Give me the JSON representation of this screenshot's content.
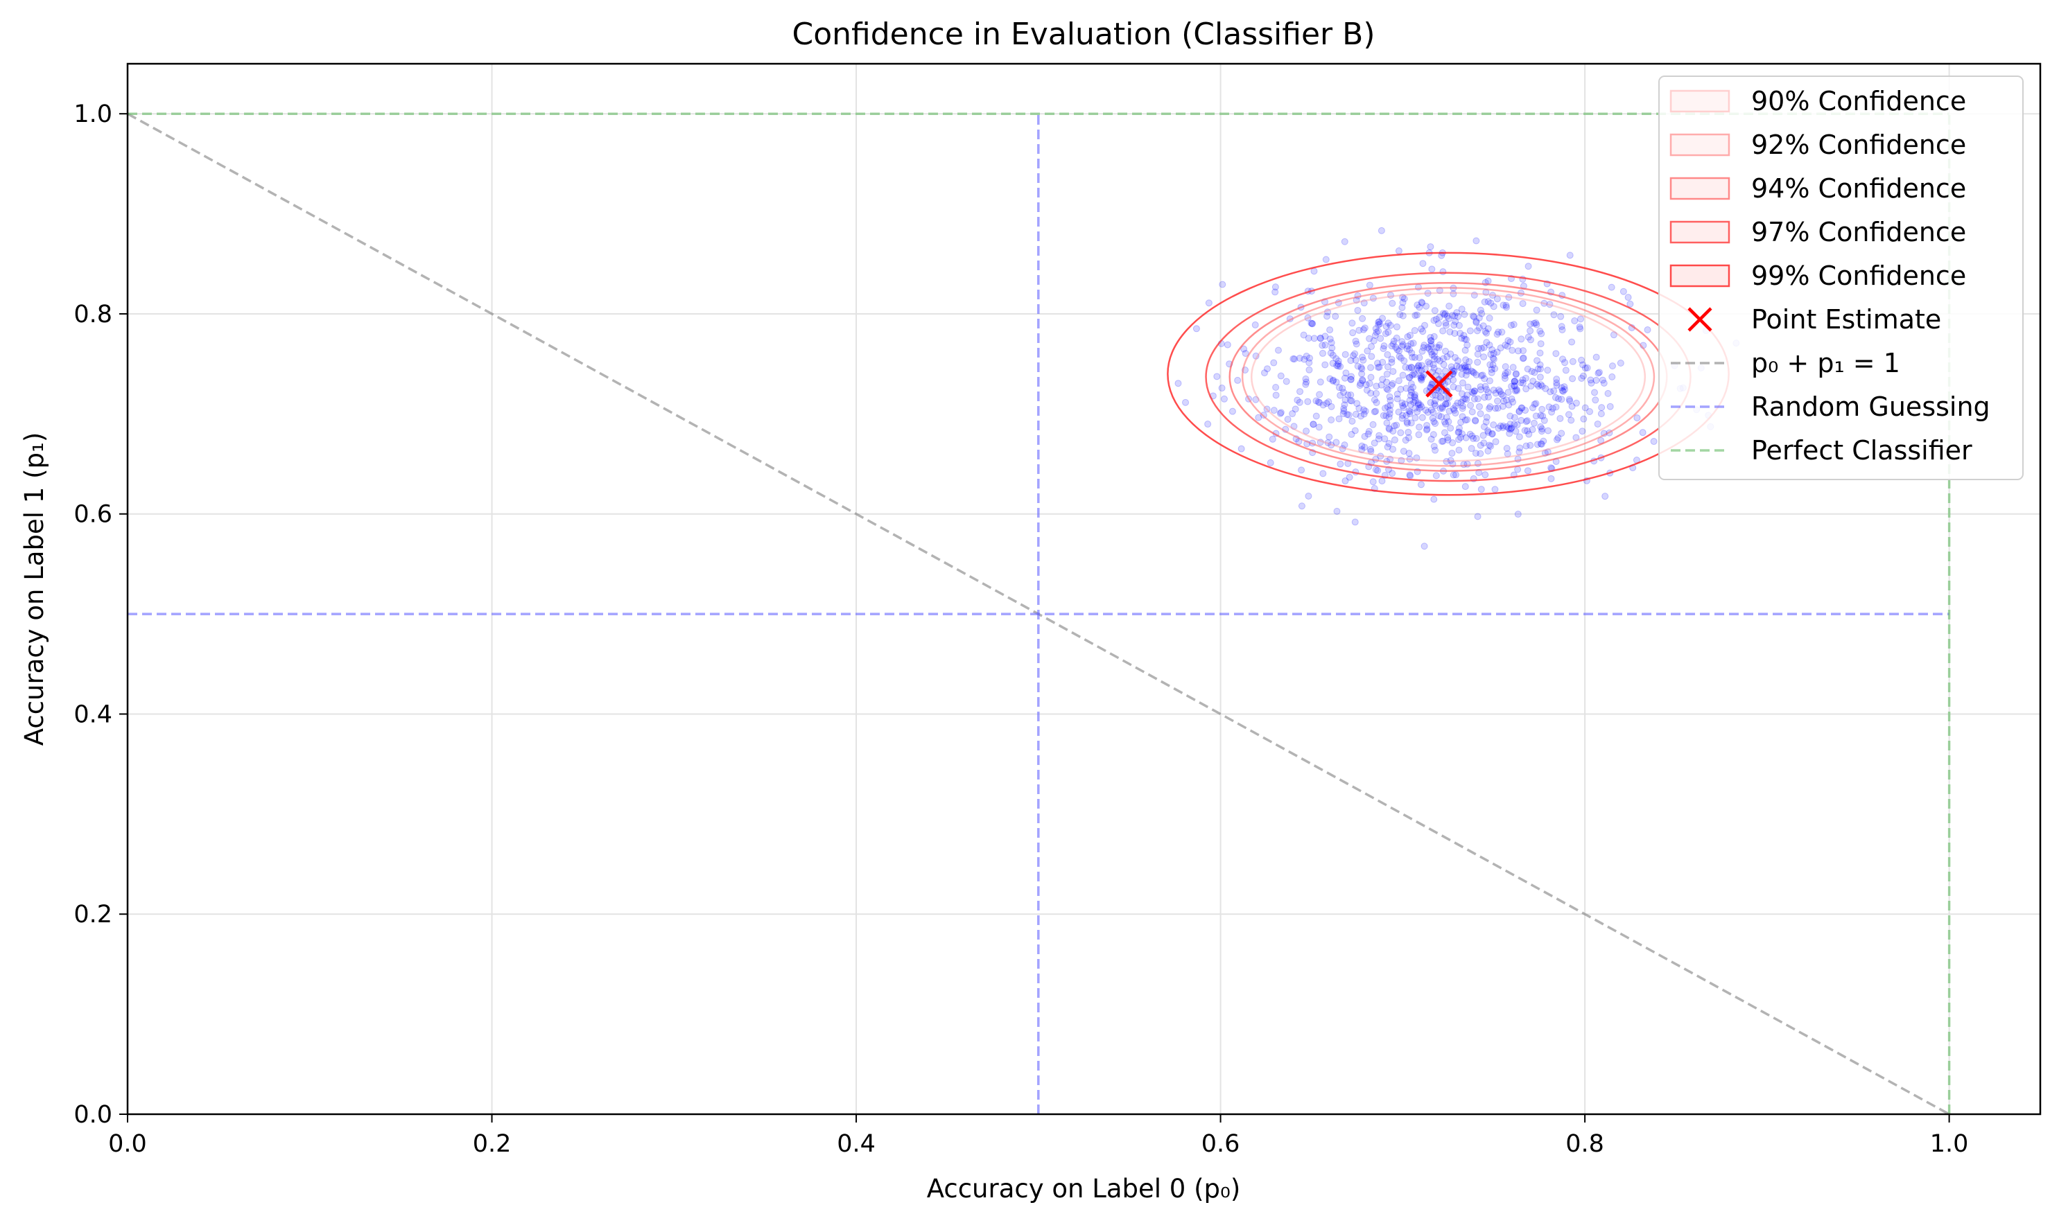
{
  "chart_data": {
    "type": "scatter",
    "title": "Confidence in Evaluation (Classifier B)",
    "xlabel": "Accuracy on Label 0 (p₀)",
    "ylabel": "Accuracy on Label 1 (p₁)",
    "xlim": [
      0.0,
      1.05
    ],
    "ylim": [
      0.0,
      1.05
    ],
    "xticks": [
      "0.0",
      "0.2",
      "0.4",
      "0.6",
      "0.8",
      "1.0"
    ],
    "yticks": [
      "0.0",
      "0.2",
      "0.4",
      "0.6",
      "0.8",
      "1.0"
    ],
    "grid": true,
    "legend_position": "top-right",
    "point_estimate": {
      "x": 0.72,
      "y": 0.73,
      "color": "#ff0000"
    },
    "bootstrap_samples": {
      "count": 1000,
      "center": [
        0.722,
        0.732
      ],
      "std": [
        0.05,
        0.05
      ],
      "color": "#0000ff"
    },
    "confidence_regions": [
      {
        "name": "90% Confidence",
        "center": [
          0.725,
          0.737
        ],
        "rx": 0.108,
        "ry": 0.084,
        "color": "#ff8080",
        "opacity": 0.35
      },
      {
        "name": "92% Confidence",
        "center": [
          0.725,
          0.737
        ],
        "rx": 0.113,
        "ry": 0.089,
        "color": "#ff6060",
        "opacity": 0.5
      },
      {
        "name": "94% Confidence",
        "center": [
          0.725,
          0.737
        ],
        "rx": 0.12,
        "ry": 0.094,
        "color": "#ff4040",
        "opacity": 0.6
      },
      {
        "name": "97% Confidence",
        "center": [
          0.725,
          0.737
        ],
        "rx": 0.133,
        "ry": 0.104,
        "color": "#ff2020",
        "opacity": 0.7
      },
      {
        "name": "99% Confidence",
        "center": [
          0.725,
          0.74
        ],
        "rx": 0.154,
        "ry": 0.121,
        "color": "#ff0000",
        "opacity": 0.7
      }
    ],
    "reference_lines": [
      {
        "name": "p₀ + p₁ = 1",
        "color": "#808080",
        "segments": [
          [
            [
              0,
              1
            ],
            [
              1,
              0
            ]
          ]
        ]
      },
      {
        "name": "Random Guessing",
        "color": "#6666ff",
        "segments": [
          [
            [
              0.5,
              0
            ],
            [
              0.5,
              1
            ]
          ],
          [
            [
              0,
              0.5
            ],
            [
              1,
              0.5
            ]
          ]
        ]
      },
      {
        "name": "Perfect Classifier",
        "color": "#66bb66",
        "segments": [
          [
            [
              1,
              0
            ],
            [
              1,
              1
            ]
          ],
          [
            [
              0,
              1
            ],
            [
              1,
              1
            ]
          ]
        ]
      }
    ],
    "legend": [
      {
        "label": "90% Confidence",
        "kind": "patch",
        "color": "#ff8080",
        "opacity": 0.35
      },
      {
        "label": "92% Confidence",
        "kind": "patch",
        "color": "#ff6060",
        "opacity": 0.5
      },
      {
        "label": "94% Confidence",
        "kind": "patch",
        "color": "#ff4040",
        "opacity": 0.6
      },
      {
        "label": "97% Confidence",
        "kind": "patch",
        "color": "#ff2020",
        "opacity": 0.7
      },
      {
        "label": "99% Confidence",
        "kind": "patch",
        "color": "#ff0000",
        "opacity": 0.7
      },
      {
        "label": "Point Estimate",
        "kind": "marker",
        "color": "#ff0000"
      },
      {
        "label": "p₀ + p₁ = 1",
        "kind": "dash",
        "color": "#808080"
      },
      {
        "label": "Random Guessing",
        "kind": "dash",
        "color": "#6666ff"
      },
      {
        "label": "Perfect Classifier",
        "kind": "dash",
        "color": "#66bb66"
      }
    ]
  }
}
